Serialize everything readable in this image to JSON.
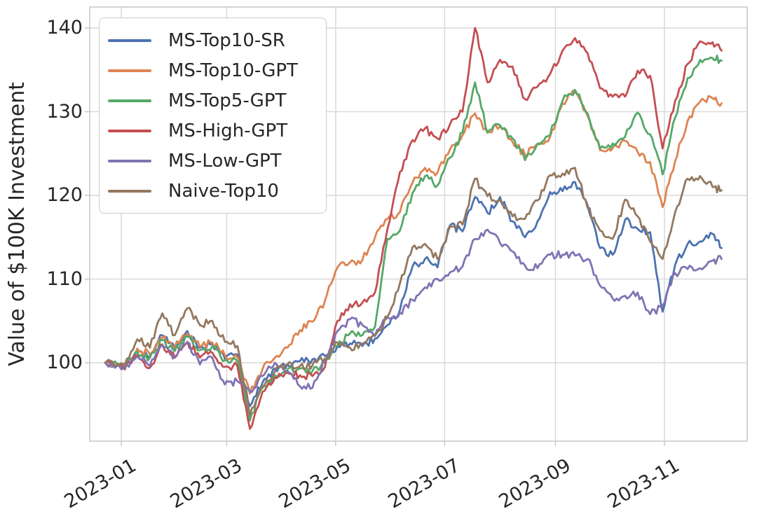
{
  "figure": {
    "kind": "matplotlib-line-chart",
    "background_color": "#ffffff",
    "text_color": "#262626"
  },
  "chart_data": {
    "type": "line",
    "title": "",
    "xlabel": "",
    "ylabel": "Value of $100K Investment",
    "grid": true,
    "legend_position": "upper-left",
    "x_tick_labels": [
      "2023-01",
      "2023-03",
      "2023-05",
      "2023-07",
      "2023-09",
      "2023-11"
    ],
    "x_tick_days": [
      0,
      59,
      120,
      181,
      243,
      304
    ],
    "y_ticks": [
      100,
      110,
      120,
      130,
      140
    ],
    "ylim": [
      90.5,
      142.5
    ],
    "x_dates": [
      "2022-12-23",
      "2023-01-03",
      "2023-01-10",
      "2023-01-17",
      "2023-01-24",
      "2023-01-31",
      "2023-02-07",
      "2023-02-14",
      "2023-02-21",
      "2023-02-28",
      "2023-03-07",
      "2023-03-14",
      "2023-03-21",
      "2023-03-28",
      "2023-04-04",
      "2023-04-11",
      "2023-04-18",
      "2023-04-25",
      "2023-05-02",
      "2023-05-09",
      "2023-05-16",
      "2023-05-23",
      "2023-05-30",
      "2023-06-06",
      "2023-06-13",
      "2023-06-20",
      "2023-06-27",
      "2023-07-04",
      "2023-07-11",
      "2023-07-18",
      "2023-07-25",
      "2023-08-01",
      "2023-08-08",
      "2023-08-15",
      "2023-08-22",
      "2023-08-29",
      "2023-09-05",
      "2023-09-12",
      "2023-09-19",
      "2023-09-26",
      "2023-10-03",
      "2023-10-10",
      "2023-10-17",
      "2023-10-24",
      "2023-10-31",
      "2023-11-07",
      "2023-11-14",
      "2023-11-21",
      "2023-11-28",
      "2023-12-02"
    ],
    "x_day_of_year": [
      -9,
      2,
      9,
      16,
      23,
      30,
      37,
      44,
      51,
      58,
      65,
      72,
      79,
      86,
      93,
      100,
      107,
      114,
      121,
      128,
      135,
      142,
      149,
      156,
      163,
      170,
      177,
      184,
      191,
      198,
      205,
      212,
      219,
      226,
      233,
      240,
      247,
      254,
      261,
      268,
      275,
      282,
      289,
      296,
      303,
      310,
      317,
      324,
      331,
      336
    ],
    "series": [
      {
        "name": "MS-Top10-SR",
        "color": "#4C72B0",
        "values": [
          100,
          99.6,
          101.5,
          100.8,
          103.3,
          101.6,
          103.8,
          101.8,
          102.3,
          100.5,
          101.0,
          94.8,
          97.6,
          99.3,
          99.8,
          100.2,
          100.4,
          100.8,
          102.0,
          102.3,
          102.0,
          102.9,
          104.5,
          106.3,
          111.5,
          112.4,
          111.4,
          116.4,
          115.7,
          119.8,
          117.9,
          119.8,
          116.9,
          115.0,
          116.9,
          120.4,
          120.5,
          121.6,
          118.8,
          113.7,
          112.9,
          117.1,
          116.0,
          115.6,
          106.1,
          111.7,
          114.2,
          114.5,
          115.4,
          113.7
        ]
      },
      {
        "name": "MS-Top10-GPT",
        "color": "#DD8452",
        "values": [
          100,
          99.7,
          101.7,
          101.0,
          103.0,
          101.9,
          103.5,
          101.9,
          102.4,
          100.9,
          100.6,
          96.3,
          99.2,
          100.6,
          101.8,
          103.9,
          104.9,
          107.4,
          111.4,
          112.0,
          112.3,
          115.0,
          117.2,
          118.0,
          121.5,
          123.3,
          122.7,
          125.5,
          127.2,
          129.8,
          127.5,
          128.3,
          126.4,
          124.8,
          126.1,
          127.0,
          131.0,
          132.3,
          129.5,
          125.4,
          125.6,
          126.5,
          125.2,
          124.0,
          118.6,
          124.1,
          128.9,
          131.2,
          131.6,
          131.0
        ]
      },
      {
        "name": "MS-Top5-GPT",
        "color": "#55A868",
        "values": [
          100,
          99.5,
          101.3,
          100.6,
          102.7,
          101.4,
          103.1,
          101.5,
          102.0,
          100.3,
          100.2,
          93.1,
          97.0,
          98.5,
          99.2,
          99.3,
          99.0,
          100.0,
          102.0,
          103.5,
          103.3,
          104.3,
          114.8,
          115.8,
          120.3,
          122.3,
          121.2,
          124.5,
          127.5,
          133.5,
          127.5,
          128.4,
          126.8,
          124.2,
          126.2,
          127.2,
          131.3,
          132.6,
          129.8,
          125.6,
          126.2,
          127.0,
          129.9,
          127.3,
          122.5,
          129.3,
          134.0,
          136.2,
          136.4,
          136.1
        ]
      },
      {
        "name": "MS-High-GPT",
        "color": "#C44E52",
        "values": [
          100,
          99.2,
          100.9,
          99.4,
          102.2,
          100.6,
          102.5,
          100.6,
          101.2,
          99.5,
          99.6,
          92.1,
          96.5,
          98.2,
          98.8,
          98.5,
          98.4,
          99.5,
          105.0,
          107.0,
          107.2,
          108.4,
          116.0,
          122.8,
          126.6,
          128.0,
          126.8,
          128.5,
          130.0,
          140.0,
          133.5,
          136.2,
          135.4,
          131.5,
          133.0,
          134.5,
          137.3,
          138.8,
          137.0,
          132.8,
          131.8,
          131.8,
          134.9,
          134.3,
          125.6,
          131.3,
          135.7,
          138.4,
          138.3,
          137.3
        ]
      },
      {
        "name": "MS-Low-GPT",
        "color": "#8172B3",
        "values": [
          100,
          99.4,
          100.8,
          99.6,
          102.1,
          100.7,
          102.4,
          99.8,
          100.6,
          97.4,
          97.8,
          96.5,
          98.4,
          100.0,
          99.0,
          97.2,
          97.0,
          100.2,
          103.8,
          105.2,
          104.5,
          103.2,
          105.4,
          106.0,
          107.5,
          109.0,
          110.0,
          110.8,
          111.5,
          114.8,
          115.9,
          114.3,
          113.3,
          111.6,
          111.3,
          112.9,
          112.9,
          112.8,
          112.4,
          109.2,
          107.7,
          108.0,
          108.4,
          105.8,
          106.8,
          110.7,
          111.2,
          111.3,
          112.2,
          112.4
        ]
      },
      {
        "name": "Naive-Top10",
        "color": "#937860",
        "values": [
          100,
          99.8,
          102.8,
          101.8,
          105.9,
          103.3,
          106.5,
          104.5,
          105.0,
          102.5,
          102.0,
          93.7,
          97.2,
          99.0,
          99.8,
          99.6,
          99.7,
          100.5,
          102.4,
          101.8,
          102.3,
          103.2,
          105.5,
          109.5,
          113.8,
          114.2,
          112.4,
          116.3,
          116.5,
          122.0,
          119.9,
          119.4,
          117.5,
          117.2,
          119.4,
          122.4,
          122.6,
          123.3,
          118.5,
          115.8,
          114.8,
          119.5,
          117.5,
          114.5,
          112.4,
          118.0,
          122.0,
          122.3,
          121.0,
          120.6
        ]
      }
    ],
    "styling": {
      "grid_color": "#d9d9d9",
      "spine_color": "#c9c9c9",
      "tick_mark_color": "#c4c4c4",
      "line_width": 2.8
    }
  }
}
